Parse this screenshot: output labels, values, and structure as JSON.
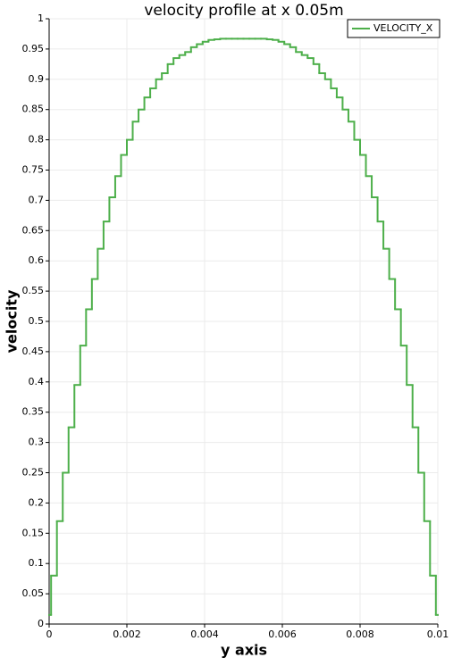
{
  "chart_data": {
    "type": "step",
    "title": "velocity profile at x 0.05m",
    "x_label": "y axis",
    "y_label": "velocity",
    "series": [
      {
        "name": "VELOCITY_X",
        "color": "#4daf4a",
        "bins": [
          0,
          5e-05,
          0.0002,
          0.00035,
          0.0005,
          0.00065,
          0.0008,
          0.00095,
          0.0011,
          0.00125,
          0.0014,
          0.00155,
          0.0017,
          0.00185,
          0.002,
          0.00215,
          0.0023,
          0.00245,
          0.0026,
          0.00275,
          0.0029,
          0.00305,
          0.0032,
          0.00335,
          0.0035,
          0.00365,
          0.0038,
          0.00395,
          0.0041,
          0.00425,
          0.0044,
          0.00455,
          0.0047,
          0.00485,
          0.005,
          0.00515,
          0.0053,
          0.00545,
          0.0056,
          0.00575,
          0.0059,
          0.00605,
          0.0062,
          0.00635,
          0.0065,
          0.00665,
          0.0068,
          0.00695,
          0.0071,
          0.00725,
          0.0074,
          0.00755,
          0.0077,
          0.00785,
          0.008,
          0.00815,
          0.0083,
          0.00845,
          0.0086,
          0.00875,
          0.0089,
          0.00905,
          0.0092,
          0.00935,
          0.0095,
          0.00965,
          0.0098,
          0.00995,
          0.01
        ],
        "values": [
          0.015,
          0.08,
          0.17,
          0.25,
          0.325,
          0.395,
          0.46,
          0.52,
          0.57,
          0.62,
          0.665,
          0.705,
          0.74,
          0.775,
          0.8,
          0.83,
          0.85,
          0.87,
          0.885,
          0.9,
          0.91,
          0.925,
          0.935,
          0.94,
          0.945,
          0.953,
          0.958,
          0.962,
          0.965,
          0.966,
          0.967,
          0.967,
          0.967,
          0.967,
          0.967,
          0.967,
          0.967,
          0.967,
          0.966,
          0.965,
          0.962,
          0.958,
          0.953,
          0.945,
          0.94,
          0.935,
          0.925,
          0.91,
          0.9,
          0.885,
          0.87,
          0.85,
          0.83,
          0.8,
          0.775,
          0.74,
          0.705,
          0.665,
          0.62,
          0.57,
          0.52,
          0.46,
          0.395,
          0.325,
          0.25,
          0.17,
          0.08,
          0.015
        ]
      }
    ],
    "xlim": [
      0,
      0.01
    ],
    "xticks": [
      0,
      0.002,
      0.004,
      0.006,
      0.008,
      0.01
    ],
    "ylim": [
      0,
      1
    ],
    "yticks": [
      0,
      0.05,
      0.1,
      0.15,
      0.2,
      0.25,
      0.3,
      0.35,
      0.4,
      0.45,
      0.5,
      0.55,
      0.6,
      0.65,
      0.7,
      0.75,
      0.8,
      0.85,
      0.9,
      0.95,
      1
    ],
    "grid": true,
    "legend": "top-right"
  }
}
